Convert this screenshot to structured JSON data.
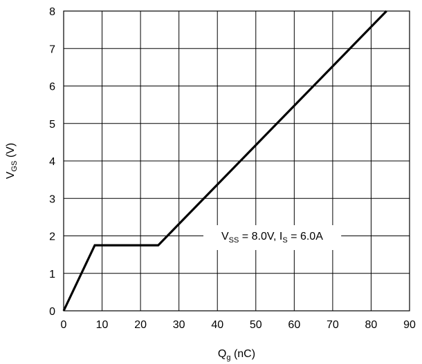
{
  "chart_data": {
    "type": "line",
    "xlabel": {
      "main": "Q",
      "sub": "g",
      "rest": " (nC)"
    },
    "ylabel": {
      "main": "V",
      "sub": "GS",
      "rest": " (V)"
    },
    "xlim": [
      0,
      90
    ],
    "ylim": [
      0,
      8
    ],
    "x_ticks": [
      0,
      10,
      20,
      30,
      40,
      50,
      60,
      70,
      80,
      90
    ],
    "y_ticks": [
      0,
      1,
      2,
      3,
      4,
      5,
      6,
      7,
      8
    ],
    "grid": true,
    "series": [
      {
        "points": [
          [
            0,
            0
          ],
          [
            8.1,
            1.75
          ],
          [
            24.6,
            1.75
          ],
          [
            84,
            8.0
          ]
        ]
      }
    ],
    "annotation": {
      "parts": [
        {
          "t": "V",
          "sub": false
        },
        {
          "t": "SS",
          "sub": true
        },
        {
          "t": " = 8.0V, I",
          "sub": false
        },
        {
          "t": "S",
          "sub": true
        },
        {
          "t": " = 6.0A",
          "sub": false
        }
      ]
    }
  }
}
